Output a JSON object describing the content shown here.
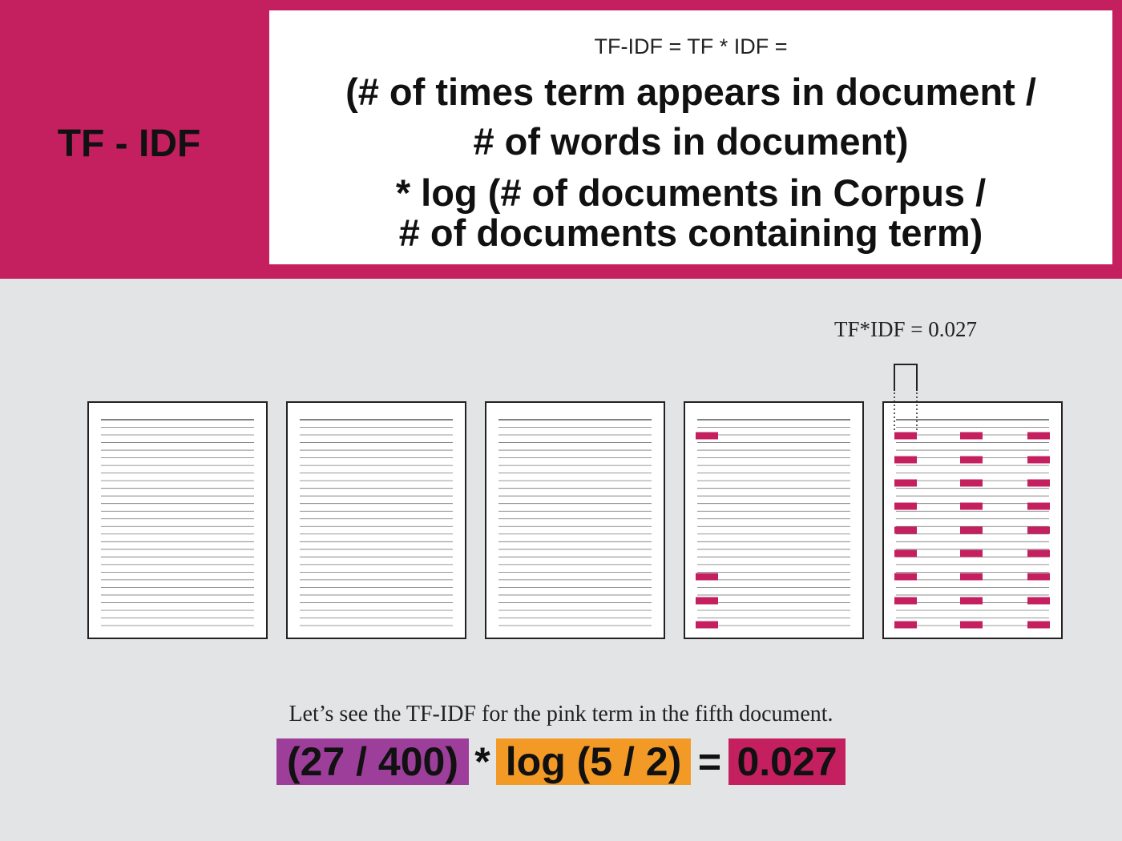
{
  "colors": {
    "header_bg": "#c42060",
    "page_bg": "#e3e4e6",
    "term_highlight": "#c42060",
    "tf_chip": "#9d3e9a",
    "idf_chip": "#f39a26",
    "result_chip": "#c42060"
  },
  "header": {
    "title": "TF - IDF",
    "formula_top": "TF-IDF = TF * IDF =",
    "formula_lines": [
      "(# of times term appears in document /",
      "# of words in document)",
      "* log (# of documents in Corpus /",
      "# of documents containing term)"
    ]
  },
  "diagram": {
    "annotation": "TF*IDF = 0.027",
    "documents": [
      {
        "term_count": 0
      },
      {
        "term_count": 0
      },
      {
        "term_count": 0
      },
      {
        "term_count": 4
      },
      {
        "term_count": 27
      }
    ]
  },
  "caption": "Let’s see the TF-IDF for the pink term in the fifth document.",
  "calculation": {
    "tf": "(27 / 400)",
    "times": "*",
    "idf": "log (5 / 2)",
    "equals": "=",
    "result": "0.027"
  }
}
